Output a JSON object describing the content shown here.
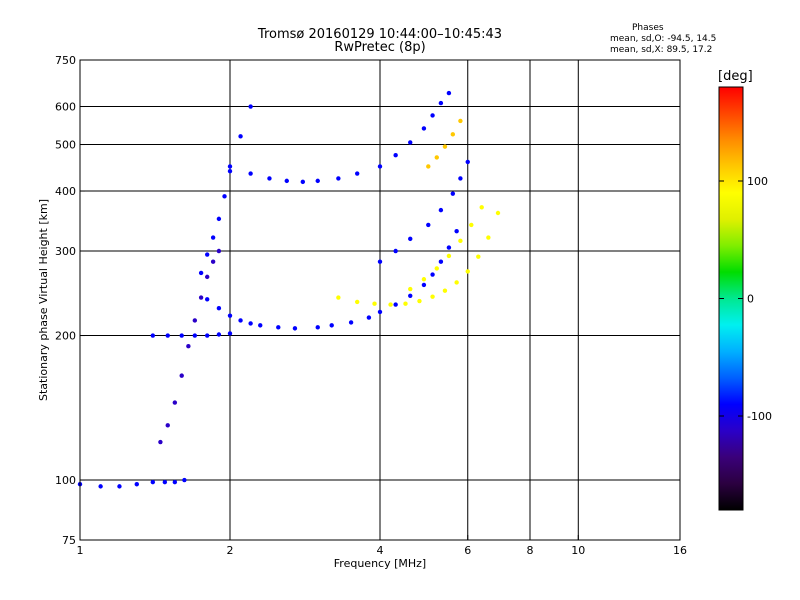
{
  "header": {
    "title_line1": "Tromsø 20160129 10:44:00–10:45:43",
    "title_line2": "RwPretec (8p)",
    "phase_label": "Phases",
    "phase_o": "mean, sd,O: -94.5, 14.5",
    "phase_x": "mean, sd,X:  89.5, 17.2"
  },
  "chart_data": {
    "type": "scatter",
    "title": "Tromsø 20160129 10:44:00–10:45:43",
    "subtitle": "RwPretec (8p)",
    "xlabel": "Frequency [MHz]",
    "ylabel": "Stationary phase Virtual Height [km]",
    "x_scale": "log",
    "y_scale": "log",
    "xlim": [
      1,
      16
    ],
    "ylim": [
      75,
      750
    ],
    "x_ticks": [
      1,
      2,
      4,
      6,
      8,
      10,
      16
    ],
    "x_tick_labels": [
      "1",
      "2",
      "4",
      "6",
      "8",
      "10",
      "16"
    ],
    "x_grid": [
      2,
      4,
      6,
      8,
      10
    ],
    "y_ticks": [
      75,
      100,
      200,
      300,
      400,
      500,
      600,
      750
    ],
    "y_tick_labels": [
      "75",
      "100",
      "200",
      "300",
      "400",
      "500",
      "600",
      "750"
    ],
    "y_grid": [
      100,
      200,
      300,
      400,
      500,
      600
    ],
    "grid": true,
    "colorbar": {
      "label": "[deg]",
      "range": [
        -180,
        180
      ],
      "ticks": [
        100,
        0,
        -100
      ],
      "tick_labels": [
        "100",
        "0",
        "-100"
      ],
      "colors": [
        "#000000",
        "#2b0040",
        "#3a007a",
        "#2a00c8",
        "#0000ff",
        "#0060ff",
        "#00b0ff",
        "#00f0f0",
        "#00e890",
        "#00dd00",
        "#80ee00",
        "#e0f000",
        "#ffff00",
        "#ffc800",
        "#ff8c00",
        "#ff4600",
        "#ff0000"
      ]
    },
    "traces": [
      {
        "name": "",
        "phase": -100,
        "x": [
          1.0,
          1.1,
          1.2,
          1.3,
          1.4,
          1.48,
          1.55,
          1.62
        ],
        "y": [
          98,
          97,
          97,
          98,
          99,
          99,
          99,
          100
        ]
      },
      {
        "name": "",
        "phase": -100,
        "x": [
          1.4,
          1.5,
          1.6,
          1.7,
          1.8,
          1.9,
          2.0
        ],
        "y": [
          200,
          200,
          200,
          200,
          200,
          201,
          202
        ]
      },
      {
        "name": "",
        "phase": -105,
        "x": [
          1.45,
          1.5,
          1.55,
          1.6,
          1.65,
          1.7,
          1.75,
          1.8,
          1.85,
          1.9
        ],
        "y": [
          120,
          130,
          145,
          165,
          190,
          215,
          240,
          265,
          285,
          300
        ]
      },
      {
        "name": "",
        "phase": -100,
        "x": [
          1.75,
          1.8,
          1.85,
          1.9,
          1.95,
          2.0,
          2.1,
          2.2
        ],
        "y": [
          270,
          295,
          320,
          350,
          390,
          440,
          520,
          600
        ]
      },
      {
        "name": "",
        "phase": -100,
        "x": [
          1.8,
          1.9,
          2.0,
          2.1,
          2.2,
          2.3,
          2.5,
          2.7,
          3.0,
          3.2,
          3.5,
          3.8,
          4.0,
          4.3,
          4.6,
          4.9,
          5.1,
          5.3,
          5.5,
          5.7
        ],
        "y": [
          238,
          228,
          220,
          215,
          212,
          210,
          208,
          207,
          208,
          210,
          213,
          218,
          224,
          232,
          242,
          255,
          268,
          285,
          305,
          330
        ]
      },
      {
        "name": "",
        "phase": -100,
        "x": [
          2.0,
          2.2,
          2.4,
          2.6,
          2.8,
          3.0,
          3.3,
          3.6,
          4.0,
          4.3,
          4.6,
          4.9,
          5.1,
          5.3,
          5.5
        ],
        "y": [
          450,
          435,
          425,
          420,
          418,
          420,
          425,
          435,
          450,
          475,
          505,
          540,
          575,
          610,
          640
        ]
      },
      {
        "name": "",
        "phase": -100,
        "x": [
          4.0,
          4.3,
          4.6,
          5.0,
          5.3,
          5.6,
          5.8,
          6.0
        ],
        "y": [
          285,
          300,
          318,
          340,
          365,
          395,
          425,
          460
        ]
      },
      {
        "name": "",
        "phase": 100,
        "x": [
          3.3,
          3.6,
          3.9,
          4.2,
          4.5,
          4.8,
          5.1,
          5.4,
          5.7,
          6.0,
          6.3,
          6.6,
          6.9
        ],
        "y": [
          240,
          235,
          233,
          232,
          233,
          236,
          241,
          248,
          258,
          272,
          292,
          320,
          360
        ]
      },
      {
        "name": "",
        "phase": 100,
        "x": [
          4.6,
          4.9,
          5.2,
          5.5,
          5.8,
          6.1,
          6.4
        ],
        "y": [
          250,
          262,
          276,
          293,
          315,
          340,
          370
        ]
      },
      {
        "name": "",
        "phase": 110,
        "x": [
          5.0,
          5.2,
          5.4,
          5.6,
          5.8
        ],
        "y": [
          450,
          470,
          495,
          525,
          560
        ]
      }
    ]
  }
}
